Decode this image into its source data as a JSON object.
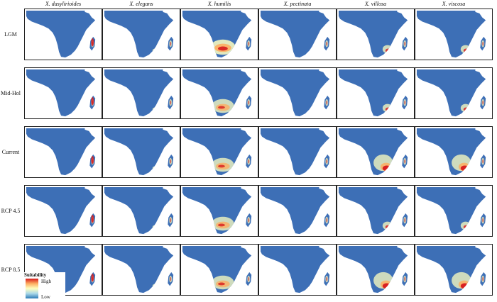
{
  "species": [
    "X. dasylirioides",
    "X. elegans",
    "X. humilis",
    "X. pectinata",
    "X. villosa",
    "X. viscosa"
  ],
  "periods": [
    "LGM",
    "Mid-Hol",
    "Current",
    "RCP 4.5",
    "RCP 8.5"
  ],
  "legend": {
    "title": "Suitability",
    "high": "High",
    "low": "Low"
  },
  "colors": {
    "background_suitability": "#3d6fb6",
    "low": "#2c7bb6",
    "mid": "#ffffbf",
    "high": "#d7191c"
  },
  "maps": {
    "X. dasylirioides": {
      "LGM": "madagascar-hotspot",
      "Mid-Hol": "madagascar-hotspot",
      "Current": "madagascar-hotspot",
      "RCP 4.5": "madagascar-hotspot",
      "RCP 8.5": "madagascar-hotspot"
    },
    "X. elegans": {
      "LGM": "southeast-small",
      "Mid-Hol": "southeast-small",
      "Current": "southeast-small",
      "RCP 4.5": "southeast-small",
      "RCP 8.5": "southeast-small"
    },
    "X. humilis": {
      "LGM": "southern-broad-high",
      "Mid-Hol": "southern-broad",
      "Current": "southern-broad",
      "RCP 4.5": "southern-broad",
      "RCP 8.5": "southern-broad"
    },
    "X. pectinata": {
      "LGM": "minimal",
      "Mid-Hol": "minimal",
      "Current": "minimal",
      "RCP 4.5": "minimal",
      "RCP 8.5": "minimal"
    },
    "X. villosa": {
      "LGM": "southeast-medium",
      "Mid-Hol": "southeast-medium",
      "Current": "southeast-high",
      "RCP 4.5": "southeast-medium",
      "RCP 8.5": "southeast-high"
    },
    "X. viscosa": {
      "LGM": "southeast-medium",
      "Mid-Hol": "southeast-medium",
      "Current": "southeast-high",
      "RCP 4.5": "southeast-medium",
      "RCP 8.5": "southeast-high"
    }
  }
}
